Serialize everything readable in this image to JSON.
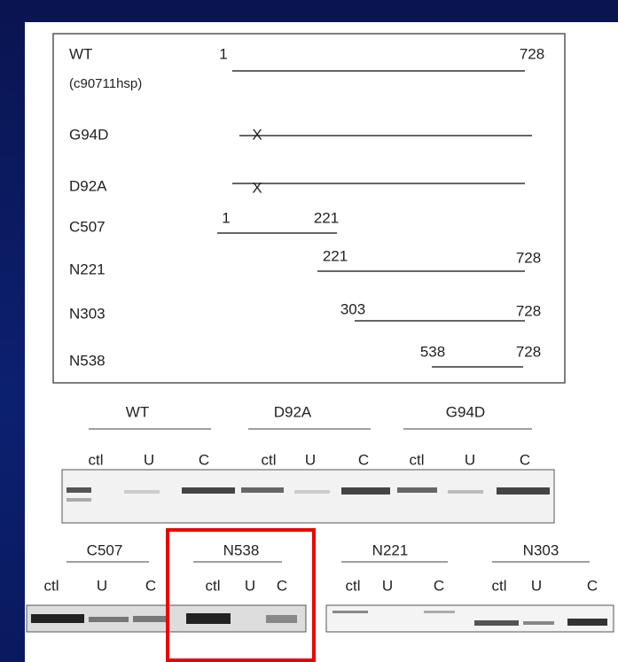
{
  "constructs": [
    {
      "name": "WT",
      "sublabel": "(c90711hsp)",
      "start": "1",
      "end": "728"
    },
    {
      "name": "G94D",
      "mark": "X"
    },
    {
      "name": "D92A",
      "mark": "X"
    },
    {
      "name": "C507",
      "start": "1",
      "end": "221"
    },
    {
      "name": "N221",
      "start": "221",
      "end": "728"
    },
    {
      "name": "N303",
      "start": "303",
      "end": "728"
    },
    {
      "name": "N538",
      "start": "538",
      "end": "728"
    }
  ],
  "gel1": {
    "groups": [
      {
        "name": "WT",
        "lanes": [
          "ctl",
          "U",
          "C"
        ]
      },
      {
        "name": "D92A",
        "lanes": [
          "ctl",
          "U",
          "C"
        ]
      },
      {
        "name": "G94D",
        "lanes": [
          "ctl",
          "U",
          "C"
        ]
      }
    ]
  },
  "gel2": {
    "groups": [
      {
        "name": "C507",
        "lanes": [
          "ctl",
          "U",
          "C"
        ]
      },
      {
        "name": "N538",
        "lanes": [
          "ctl",
          "U",
          "C"
        ]
      },
      {
        "name": "N221",
        "lanes": [
          "ctl",
          "U",
          "C"
        ]
      },
      {
        "name": "N303",
        "lanes": [
          "ctl",
          "U",
          "C"
        ]
      }
    ]
  }
}
